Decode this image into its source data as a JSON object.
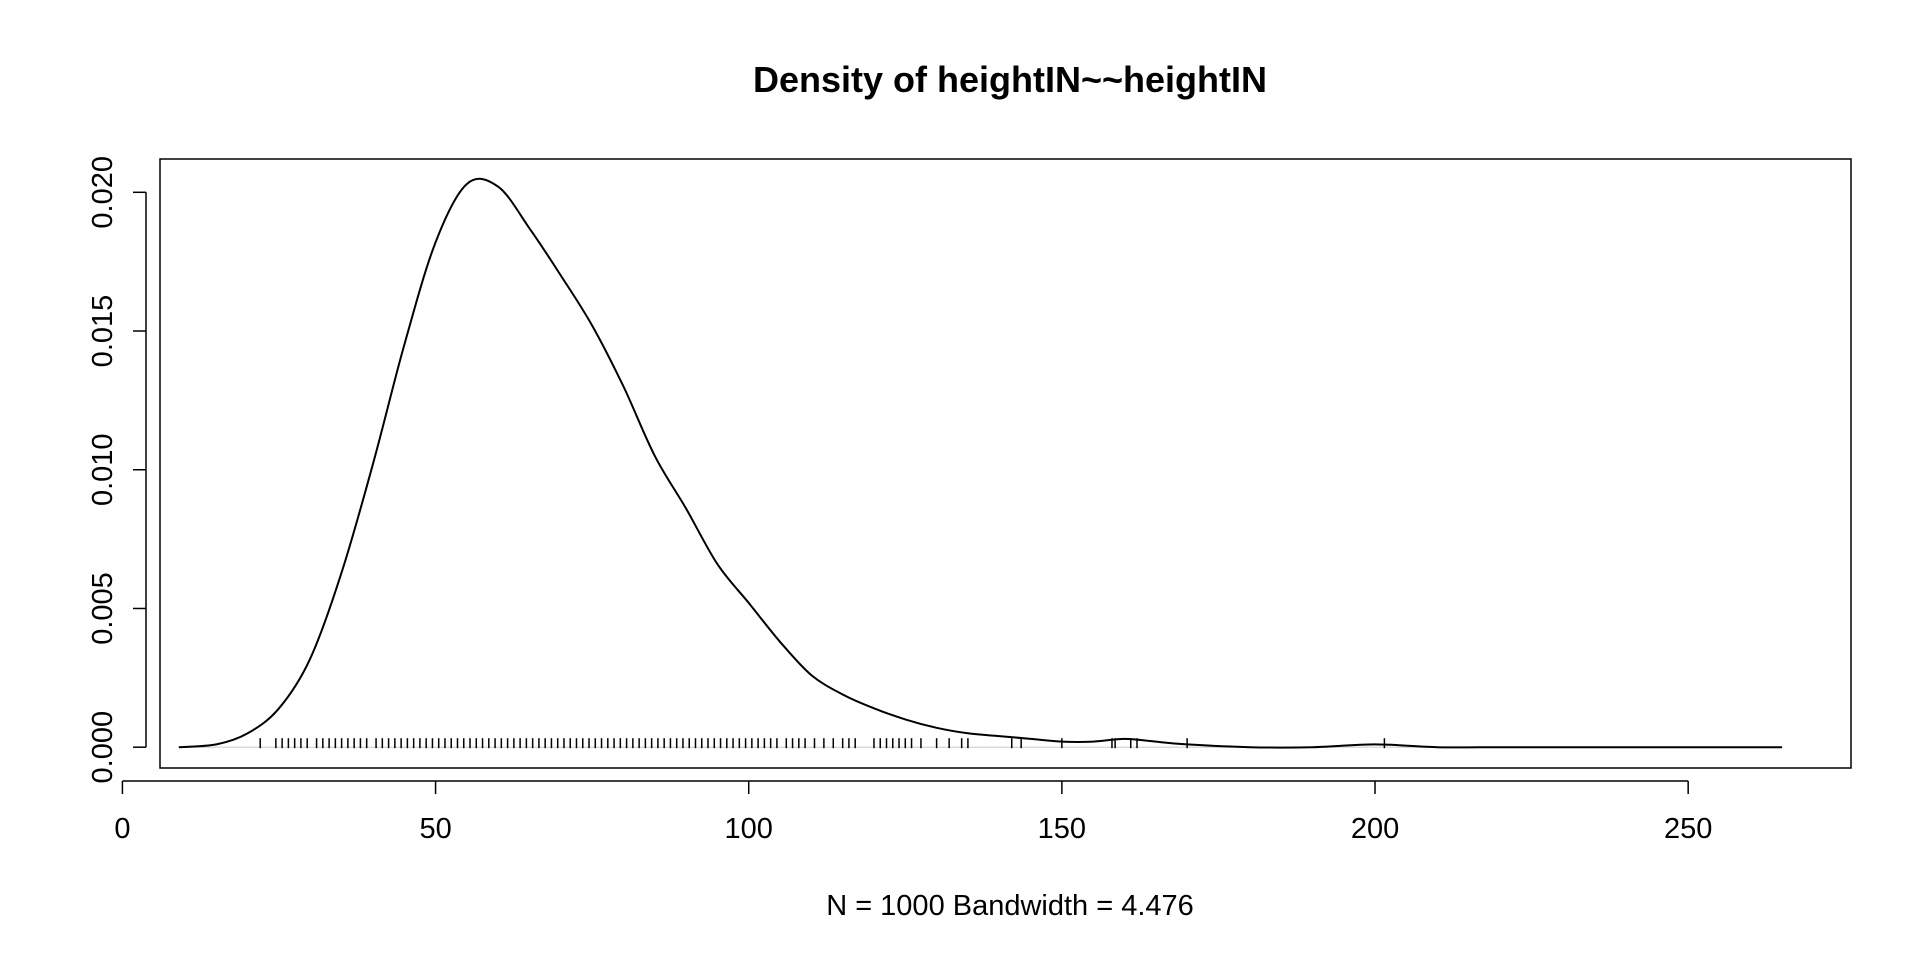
{
  "chart_data": {
    "type": "line",
    "title": "Density of heightIN~~heightIN",
    "xlabel": "N = 1000   Bandwidth = 4.476",
    "ylabel": "",
    "xlim": [
      6,
      276
    ],
    "ylim": [
      -0.00075,
      0.0212
    ],
    "x_ticks": [
      0,
      50,
      100,
      150,
      200,
      250
    ],
    "x_tick_labels": [
      "0",
      "50",
      "100",
      "150",
      "200",
      "250"
    ],
    "y_ticks": [
      0.0,
      0.005,
      0.01,
      0.015,
      0.02
    ],
    "y_tick_labels": [
      "0.000",
      "0.005",
      "0.010",
      "0.015",
      "0.020"
    ],
    "grid": false,
    "legend": "none",
    "series": [
      {
        "x": [
          9,
          15,
          20,
          25,
          30,
          35,
          40,
          45,
          50,
          55,
          60,
          65,
          70,
          75,
          80,
          85,
          90,
          95,
          100,
          105,
          110,
          115,
          120,
          125,
          130,
          135,
          140,
          145,
          150,
          155,
          160,
          165,
          170,
          180,
          190,
          200,
          210,
          220,
          230,
          240,
          250,
          265
        ],
        "y": [
          0.0,
          0.0001,
          0.0005,
          0.0014,
          0.0032,
          0.0063,
          0.0102,
          0.0145,
          0.0182,
          0.0203,
          0.0202,
          0.0187,
          0.017,
          0.0152,
          0.013,
          0.0105,
          0.0086,
          0.0066,
          0.0052,
          0.0038,
          0.0026,
          0.0019,
          0.0014,
          0.001,
          0.0007,
          0.0005,
          0.0004,
          0.0003,
          0.0002,
          0.0002,
          0.0003,
          0.0002,
          0.0001,
          0.0,
          0.0,
          0.0001,
          0.0,
          0.0,
          0.0,
          0.0,
          0.0,
          0.0
        ]
      }
    ],
    "rug": [
      22,
      24.5,
      25.5,
      26.5,
      27.5,
      28.5,
      29.5,
      31,
      32,
      33,
      34,
      35,
      36,
      37,
      38,
      39,
      40.5,
      41.5,
      42.5,
      43.5,
      44.5,
      45.5,
      46.5,
      47.5,
      48.5,
      49.5,
      50.5,
      51.5,
      52.5,
      53.5,
      54.5,
      55.5,
      56.5,
      57.5,
      58.5,
      59.5,
      60.5,
      61.5,
      62.5,
      63.5,
      64.5,
      65.5,
      66.5,
      67.5,
      68.5,
      69.5,
      70.5,
      71.5,
      72.5,
      73.5,
      74.5,
      75.5,
      76.5,
      77.5,
      78.5,
      79.5,
      80.5,
      81.5,
      82.5,
      83.5,
      84.5,
      85.5,
      86.5,
      87.5,
      88.5,
      89.5,
      90.5,
      91.5,
      92.5,
      93.5,
      94.5,
      95.5,
      96.5,
      97.5,
      98.5,
      99.5,
      100.5,
      101.5,
      102.5,
      103.5,
      104.5,
      106,
      107,
      108,
      109,
      110.5,
      112,
      113.5,
      115,
      116,
      117,
      120,
      121,
      122,
      123,
      124,
      125,
      126,
      127.5,
      130,
      132,
      134,
      135,
      142,
      143.5,
      150,
      158,
      158.5,
      161,
      162,
      170,
      201.5
    ]
  }
}
